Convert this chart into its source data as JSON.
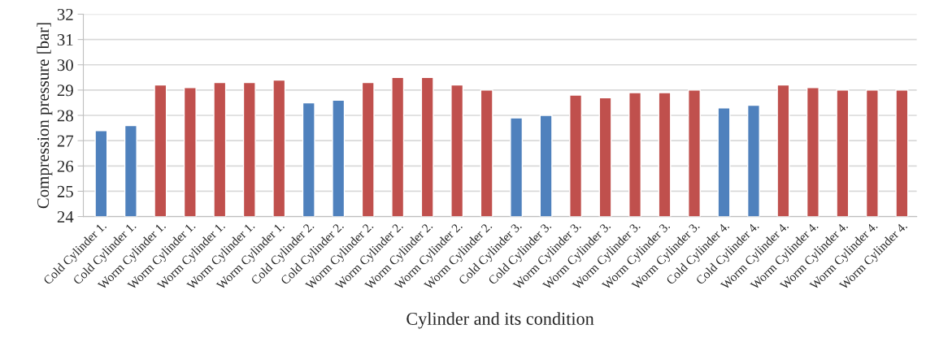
{
  "chart_data": {
    "type": "bar",
    "xlabel": "Cylinder and its condition",
    "ylabel": "Compression pressure [bar]",
    "categories": [
      "Cold Cylinder 1.",
      "Cold Cylinder 1.",
      "Worm Cylinder 1.",
      "Worm Cylinder 1.",
      "Worm Cylinder 1.",
      "Worm Cylinder 1.",
      "Worm Cylinder 1.",
      "Cold Cylinder 2.",
      "Cold Cylinder 2.",
      "Worm Cylinder 2.",
      "Worm Cylinder 2.",
      "Worm Cylinder 2.",
      "Worm Cylinder 2.",
      "Worm Cylinder 2.",
      "Cold Cylinder 3.",
      "Cold Cylinder 3.",
      "Worm Cylinder 3.",
      "Worm Cylinder 3.",
      "Worm Cylinder 3.",
      "Worm Cylinder 3.",
      "Worm Cylinder 3.",
      "Cold Cylinder 4.",
      "Cold Cylinder 4.",
      "Worm Cylinder 4.",
      "Worm Cylinder 4.",
      "Worm Cylinder 4.",
      "Worm Cylinder 4.",
      "Worm Cylinder 4."
    ],
    "values": [
      27.4,
      27.6,
      29.2,
      29.1,
      29.3,
      29.3,
      29.4,
      28.5,
      28.6,
      29.3,
      29.5,
      29.5,
      29.2,
      29.0,
      27.9,
      28.0,
      28.8,
      28.7,
      28.9,
      28.9,
      29.0,
      28.3,
      28.4,
      29.2,
      29.1,
      29.0,
      29.0,
      29.0
    ],
    "colors": [
      "#4f81bd",
      "#4f81bd",
      "#c0504d",
      "#c0504d",
      "#c0504d",
      "#c0504d",
      "#c0504d",
      "#4f81bd",
      "#4f81bd",
      "#c0504d",
      "#c0504d",
      "#c0504d",
      "#c0504d",
      "#c0504d",
      "#4f81bd",
      "#4f81bd",
      "#c0504d",
      "#c0504d",
      "#c0504d",
      "#c0504d",
      "#c0504d",
      "#4f81bd",
      "#4f81bd",
      "#c0504d",
      "#c0504d",
      "#c0504d",
      "#c0504d",
      "#c0504d"
    ],
    "ylim": [
      24,
      32
    ],
    "yticks": [
      24,
      25,
      26,
      27,
      28,
      29,
      30,
      31,
      32
    ],
    "grid": "y"
  }
}
